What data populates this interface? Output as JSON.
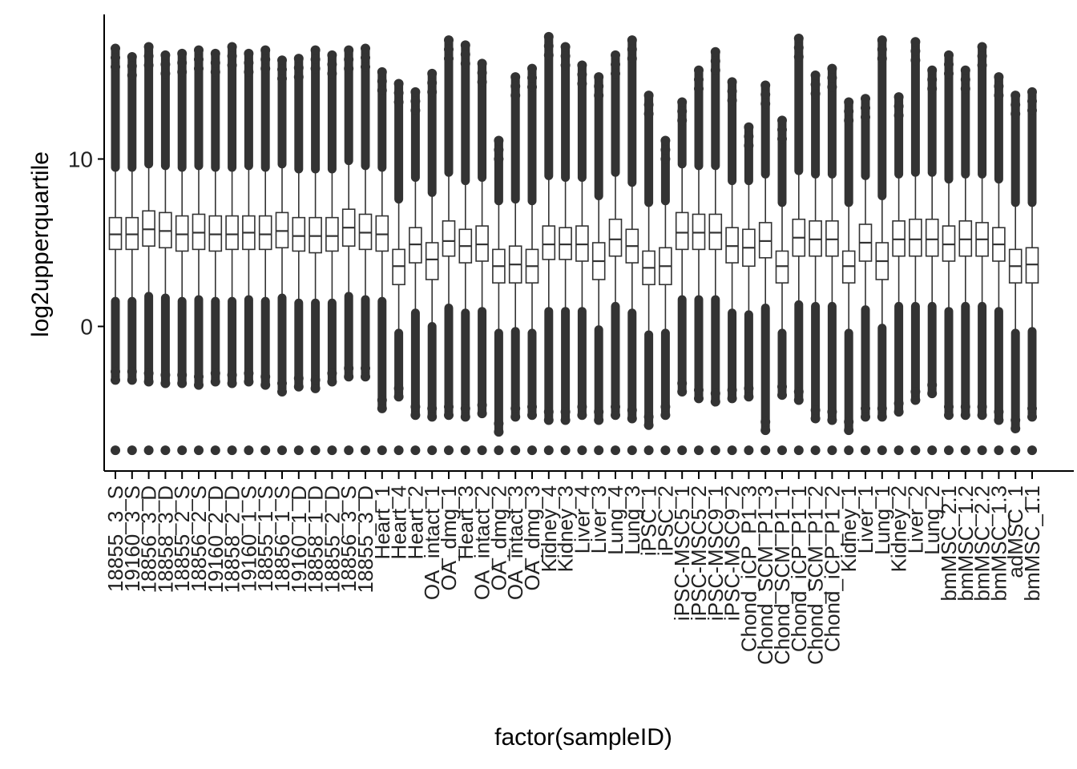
{
  "chart_data": {
    "type": "boxplot",
    "title": "",
    "xlabel": "factor(sampleID)",
    "ylabel": "log2upperquartile",
    "ylim": [
      -8.5,
      18.5
    ],
    "yticks": [
      0,
      10
    ],
    "grid": false,
    "legend": "none",
    "colors": {
      "box_stroke": "#333333",
      "box_fill": "#ffffff",
      "outlier": "#333333",
      "axis": "#000000"
    },
    "floor_value": -7.4,
    "categories": [
      "18855_3_S",
      "19160_3_S",
      "18856_3_D",
      "18858_3_D",
      "18855_2_S",
      "18856_2_S",
      "19160_2_D",
      "18858_2_D",
      "19160_1_S",
      "18855_1_S",
      "18856_1_S",
      "19160_1_D",
      "18858_1_D",
      "18855_2_D",
      "18856_3_S",
      "18855_3_D",
      "Heart_1",
      "Heart_4",
      "Heart_2",
      "OA_intact_1",
      "OA_dmg_1",
      "Heart_3",
      "OA_intact_2",
      "OA_dmg_2",
      "OA_intact_3",
      "OA_dmg_3",
      "Kidney_4",
      "Kidney_3",
      "Liver_4",
      "Liver_3",
      "Lung_4",
      "Lung_3",
      "iPSC_1",
      "iPSC_2",
      "iPSC-MSC5_1",
      "iPSC-MSC5_2",
      "iPSC-MSC9_1",
      "iPSC-MSC9_2",
      "Chond_iCP_P1_3",
      "Chond_SCM_P1_3",
      "Chond_SCM_P1_1",
      "Chond_iCP_P1_1",
      "Chond_SCM_P1_2",
      "Chond_iCP_P1_2",
      "Kidney_1",
      "Liver_1",
      "Lung_1",
      "Kidney_2",
      "Liver_2",
      "Lung_2",
      "bmMSC_2.1",
      "bmMSC_1.2",
      "bmMSC_2.2",
      "bmMSC_1.3",
      "adMSC_1",
      "bmMSC_1.1"
    ],
    "medians": [
      5.5,
      5.5,
      5.8,
      5.7,
      5.5,
      5.6,
      5.5,
      5.5,
      5.6,
      5.5,
      5.7,
      5.4,
      5.4,
      5.4,
      5.9,
      5.6,
      5.5,
      3.6,
      4.9,
      4.0,
      5.1,
      4.8,
      4.9,
      3.6,
      3.7,
      3.6,
      4.9,
      4.9,
      4.9,
      3.9,
      5.2,
      4.8,
      3.5,
      3.6,
      5.6,
      5.6,
      5.6,
      4.8,
      4.7,
      5.1,
      3.6,
      5.3,
      5.2,
      5.2,
      3.6,
      5.0,
      3.9,
      5.2,
      5.2,
      5.2,
      4.9,
      5.2,
      5.2,
      4.9,
      3.6,
      3.7
    ],
    "q1": [
      4.6,
      4.6,
      4.8,
      4.7,
      4.5,
      4.6,
      4.5,
      4.6,
      4.6,
      4.6,
      4.7,
      4.5,
      4.4,
      4.5,
      4.8,
      4.6,
      4.5,
      2.5,
      3.8,
      2.8,
      4.2,
      3.8,
      3.9,
      2.6,
      2.6,
      2.6,
      4.0,
      4.0,
      3.9,
      2.8,
      4.2,
      3.8,
      2.5,
      2.5,
      4.6,
      4.6,
      4.6,
      3.8,
      3.6,
      4.1,
      2.6,
      4.2,
      4.2,
      4.2,
      2.6,
      3.9,
      2.8,
      4.2,
      4.2,
      4.2,
      3.9,
      4.2,
      4.2,
      3.9,
      2.6,
      2.6
    ],
    "q3": [
      6.5,
      6.5,
      6.9,
      6.8,
      6.6,
      6.7,
      6.6,
      6.6,
      6.6,
      6.6,
      6.8,
      6.5,
      6.5,
      6.5,
      7.0,
      6.7,
      6.6,
      4.6,
      5.9,
      5.0,
      6.3,
      5.8,
      6.0,
      4.6,
      4.8,
      4.6,
      6.0,
      5.9,
      6.0,
      5.0,
      6.4,
      5.8,
      4.5,
      4.7,
      6.8,
      6.7,
      6.7,
      5.9,
      5.8,
      6.2,
      4.5,
      6.4,
      6.3,
      6.3,
      4.5,
      6.1,
      5.0,
      6.3,
      6.4,
      6.4,
      6.0,
      6.3,
      6.2,
      5.9,
      4.6,
      4.7
    ],
    "whisker_high": [
      9.5,
      9.5,
      9.7,
      9.6,
      9.5,
      9.6,
      9.5,
      9.5,
      9.6,
      9.5,
      9.7,
      9.4,
      9.4,
      9.4,
      9.9,
      9.6,
      9.5,
      7.6,
      8.9,
      8.0,
      9.2,
      8.7,
      8.9,
      7.5,
      7.6,
      7.5,
      9.0,
      8.9,
      8.9,
      7.8,
      9.2,
      8.6,
      7.4,
      7.5,
      9.7,
      9.6,
      9.6,
      8.7,
      8.7,
      9.1,
      7.4,
      9.3,
      9.1,
      9.1,
      7.4,
      9.0,
      7.8,
      9.1,
      9.2,
      9.2,
      8.8,
      9.1,
      9.1,
      8.8,
      7.4,
      7.4
    ],
    "whisker_low": [
      1.5,
      1.5,
      1.8,
      1.7,
      1.5,
      1.6,
      1.5,
      1.5,
      1.6,
      1.5,
      1.7,
      1.4,
      1.4,
      1.4,
      1.8,
      1.6,
      1.5,
      -0.4,
      0.8,
      0.0,
      1.1,
      0.8,
      0.9,
      -0.4,
      -0.3,
      -0.4,
      0.9,
      0.9,
      0.9,
      -0.2,
      1.2,
      0.8,
      -0.5,
      -0.4,
      1.6,
      1.6,
      1.6,
      0.8,
      0.7,
      1.1,
      -0.4,
      1.3,
      1.2,
      1.2,
      -0.4,
      1.0,
      -0.1,
      1.2,
      1.2,
      1.2,
      0.9,
      1.2,
      1.2,
      0.9,
      -0.4,
      -0.3
    ],
    "max_outlier": [
      16.6,
      16.1,
      16.7,
      16.2,
      16.3,
      16.5,
      16.3,
      16.7,
      16.3,
      16.5,
      15.9,
      16.0,
      16.5,
      16.2,
      16.5,
      16.6,
      15.2,
      14.5,
      14.0,
      15.1,
      17.1,
      16.8,
      15.7,
      11.1,
      14.9,
      15.4,
      17.3,
      16.7,
      15.6,
      14.9,
      16.2,
      17.1,
      13.8,
      11.1,
      13.4,
      15.3,
      16.4,
      14.6,
      11.9,
      14.4,
      12.3,
      17.2,
      15.0,
      15.4,
      13.4,
      13.6,
      17.1,
      13.7,
      17.0,
      15.3,
      16.2,
      15.3,
      16.7,
      14.9,
      13.8,
      14.0
    ],
    "min_outlier": [
      -3.2,
      -3.2,
      -3.3,
      -3.4,
      -3.4,
      -3.5,
      -3.3,
      -3.4,
      -3.3,
      -3.5,
      -3.9,
      -3.6,
      -3.7,
      -3.3,
      -3.0,
      -3.0,
      -4.9,
      -4.2,
      -5.3,
      -5.4,
      -5.3,
      -5.4,
      -5.2,
      -6.3,
      -5.4,
      -5.3,
      -5.6,
      -5.6,
      -5.3,
      -5.6,
      -5.3,
      -5.5,
      -5.9,
      -5.3,
      -3.9,
      -4.3,
      -4.5,
      -4.3,
      -4.2,
      -6.2,
      -4.1,
      -4.4,
      -5.5,
      -5.6,
      -6.2,
      -5.4,
      -5.4,
      -5.1,
      -4.4,
      -4.0,
      -5.3,
      -5.3,
      -5.3,
      -5.6,
      -6.1,
      -5.4
    ]
  }
}
